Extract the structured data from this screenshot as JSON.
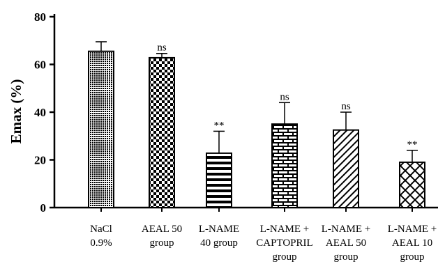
{
  "chart_data": {
    "type": "bar",
    "ylabel": "Emax (%)",
    "xlabel": "",
    "ylim": [
      0,
      80
    ],
    "yticks": [
      0,
      20,
      40,
      60,
      80
    ],
    "grid": false,
    "categories": [
      [
        "NaCl",
        "0.9%"
      ],
      [
        "AEAL 50",
        "group"
      ],
      [
        "L-NAME",
        "40 group"
      ],
      [
        "L-NAME +",
        "CAPTOPRIL",
        "group"
      ],
      [
        "L-NAME +",
        "AEAL 50",
        "group"
      ],
      [
        "L-NAME +",
        "AEAL 10",
        "group"
      ]
    ],
    "values": [
      65.5,
      62.8,
      22.8,
      35.0,
      32.5,
      19.0
    ],
    "errors": [
      4.0,
      1.8,
      9.2,
      9.0,
      7.5,
      5.0
    ],
    "significance": [
      "",
      "ns",
      "**",
      "ns",
      "ns",
      "**"
    ],
    "patterns": [
      "fine-dots",
      "checker",
      "horizontal-lines",
      "bricks",
      "diagonal-lines",
      "crosshatch"
    ],
    "colors": {
      "ink": "#000000",
      "background": "#ffffff"
    }
  }
}
